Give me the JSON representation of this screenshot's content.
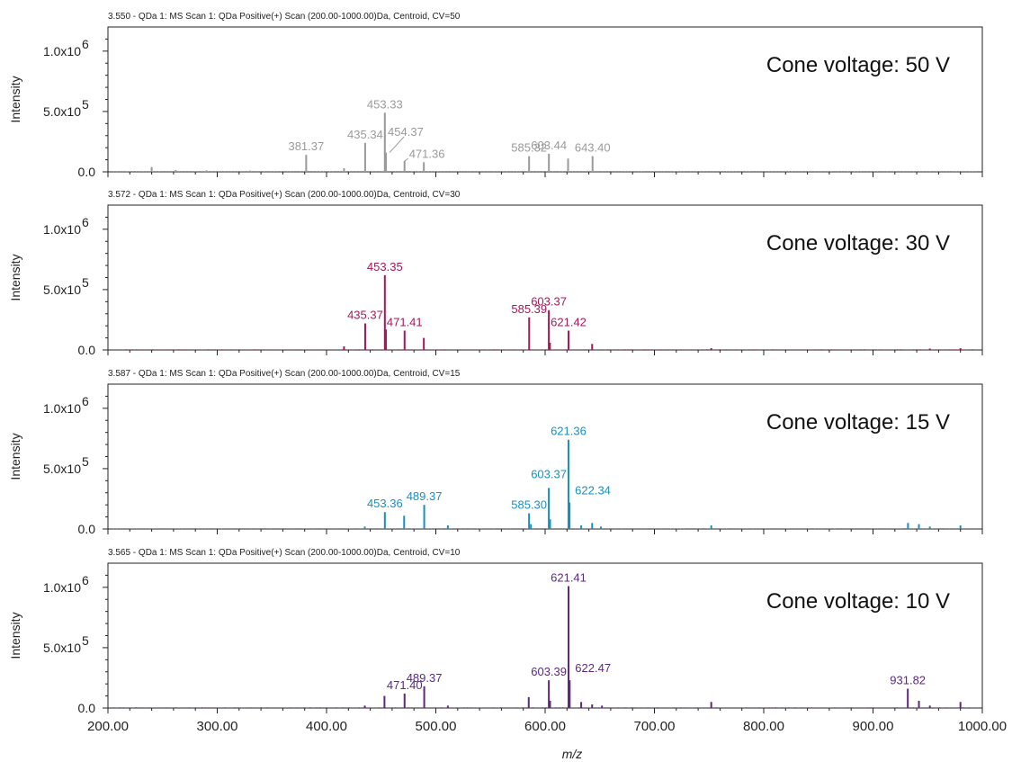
{
  "chart_data": {
    "type": "line",
    "x_axis": {
      "label": "m/z",
      "range": [
        200,
        1000
      ],
      "ticks": [
        "200.00",
        "300.00",
        "400.00",
        "500.00",
        "600.00",
        "700.00",
        "800.00",
        "900.00",
        "1000.00"
      ]
    },
    "y_axis": {
      "label": "Intensity",
      "range": [
        0,
        1200000
      ],
      "ticks": [
        {
          "value": 0,
          "label": "0.0"
        },
        {
          "value": 500000,
          "label": "5.0x10",
          "exp": "5"
        },
        {
          "value": 1000000,
          "label": "1.0x10",
          "exp": "6"
        }
      ]
    },
    "panels": [
      {
        "header": "3.550 - QDa 1: MS Scan 1: QDa Positive(+) Scan (200.00-1000.00)Da, Centroid, CV=50",
        "title": "Cone voltage: 50 V",
        "color": "#9a9a9a",
        "bottom_tick_label": "0.0",
        "peaks": [
          [
            240,
            40000
          ],
          [
            262,
            15000
          ],
          [
            290,
            12000
          ],
          [
            330,
            10000
          ],
          [
            381.37,
            140000
          ],
          [
            416,
            30000
          ],
          [
            435.34,
            240000
          ],
          [
            453.33,
            490000
          ],
          [
            454.37,
            160000
          ],
          [
            471.36,
            90000
          ],
          [
            489,
            80000
          ],
          [
            585.32,
            130000
          ],
          [
            603.44,
            150000
          ],
          [
            621,
            110000
          ],
          [
            643.4,
            130000
          ]
        ],
        "labels": [
          {
            "x": 381.37,
            "y": 140000,
            "text": "381.37"
          },
          {
            "x": 435.34,
            "y": 240000,
            "text": "435.34"
          },
          {
            "x": 453.33,
            "y": 490000,
            "text": "453.33"
          },
          {
            "x": 454.37,
            "y": 160000,
            "text": "454.37"
          },
          {
            "x": 471.36,
            "y": 90000,
            "text": "471.36"
          },
          {
            "x": 585.32,
            "y": 130000,
            "text": "585.32"
          },
          {
            "x": 603.44,
            "y": 150000,
            "text": "603.44"
          },
          {
            "x": 643.4,
            "y": 130000,
            "text": "643.40"
          }
        ]
      },
      {
        "header": "3.572 - QDa 1: MS Scan 1: QDa Positive(+) Scan (200.00-1000.00)Da, Centroid, CV=30",
        "title": "Cone voltage: 30 V",
        "color": "#a3195b",
        "bottom_tick_label": "0.0",
        "peaks": [
          [
            416,
            30000
          ],
          [
            435.37,
            220000
          ],
          [
            453.35,
            620000
          ],
          [
            454.4,
            170000
          ],
          [
            471.41,
            160000
          ],
          [
            489,
            100000
          ],
          [
            585.39,
            270000
          ],
          [
            603.37,
            330000
          ],
          [
            604.4,
            60000
          ],
          [
            621.42,
            160000
          ],
          [
            643,
            50000
          ],
          [
            752,
            15000
          ],
          [
            952,
            12000
          ],
          [
            980,
            15000
          ]
        ],
        "labels": [
          {
            "x": 435.37,
            "y": 220000,
            "text": "435.37"
          },
          {
            "x": 453.35,
            "y": 620000,
            "text": "453.35"
          },
          {
            "x": 471.41,
            "y": 160000,
            "text": "471.41"
          },
          {
            "x": 585.39,
            "y": 270000,
            "text": "585.39"
          },
          {
            "x": 603.37,
            "y": 330000,
            "text": "603.37"
          },
          {
            "x": 621.42,
            "y": 160000,
            "text": "621.42"
          }
        ]
      },
      {
        "header": "3.587 - QDa 1: MS Scan 1: QDa Positive(+) Scan (200.00-1000.00)Da, Centroid, CV=15",
        "title": "Cone voltage: 15 V",
        "color": "#1a8fbf",
        "bottom_tick_label": "0.0",
        "peaks": [
          [
            435,
            20000
          ],
          [
            453.36,
            140000
          ],
          [
            471,
            110000
          ],
          [
            489.37,
            200000
          ],
          [
            511,
            30000
          ],
          [
            585.3,
            130000
          ],
          [
            587,
            40000
          ],
          [
            603.37,
            340000
          ],
          [
            604.5,
            80000
          ],
          [
            621.36,
            740000
          ],
          [
            622.34,
            220000
          ],
          [
            633,
            30000
          ],
          [
            643,
            50000
          ],
          [
            651,
            20000
          ],
          [
            752,
            30000
          ],
          [
            932,
            50000
          ],
          [
            942,
            40000
          ],
          [
            952,
            20000
          ],
          [
            980,
            30000
          ]
        ],
        "labels": [
          {
            "x": 453.36,
            "y": 140000,
            "text": "453.36"
          },
          {
            "x": 489.37,
            "y": 200000,
            "text": "489.37"
          },
          {
            "x": 585.3,
            "y": 130000,
            "text": "585.30"
          },
          {
            "x": 603.37,
            "y": 340000,
            "text": "603.37"
          },
          {
            "x": 621.36,
            "y": 740000,
            "text": "621.36"
          },
          {
            "x": 622.34,
            "y": 220000,
            "text": "622.34"
          }
        ]
      },
      {
        "header": "3.565 - QDa 1: MS Scan 1: QDa Positive(+) Scan (200.00-1000.00)Da, Centroid, CV=10",
        "title": "Cone voltage: 10 V",
        "color": "#5b2a7e",
        "bottom_tick_label": "0.0",
        "peaks": [
          [
            435,
            20000
          ],
          [
            453,
            100000
          ],
          [
            471.4,
            120000
          ],
          [
            489.37,
            180000
          ],
          [
            511,
            20000
          ],
          [
            585,
            90000
          ],
          [
            603.39,
            230000
          ],
          [
            604.5,
            60000
          ],
          [
            621.41,
            1010000
          ],
          [
            622.47,
            230000
          ],
          [
            633,
            50000
          ],
          [
            643,
            30000
          ],
          [
            652,
            20000
          ],
          [
            752,
            50000
          ],
          [
            931.82,
            160000
          ],
          [
            942,
            60000
          ],
          [
            952,
            20000
          ],
          [
            980,
            50000
          ]
        ],
        "labels": [
          {
            "x": 471.4,
            "y": 120000,
            "text": "471.40"
          },
          {
            "x": 489.37,
            "y": 180000,
            "text": "489.37"
          },
          {
            "x": 603.39,
            "y": 230000,
            "text": "603.39"
          },
          {
            "x": 621.41,
            "y": 1010000,
            "text": "621.41"
          },
          {
            "x": 622.47,
            "y": 230000,
            "text": "622.47"
          },
          {
            "x": 931.82,
            "y": 160000,
            "text": "931.82"
          }
        ]
      }
    ]
  }
}
